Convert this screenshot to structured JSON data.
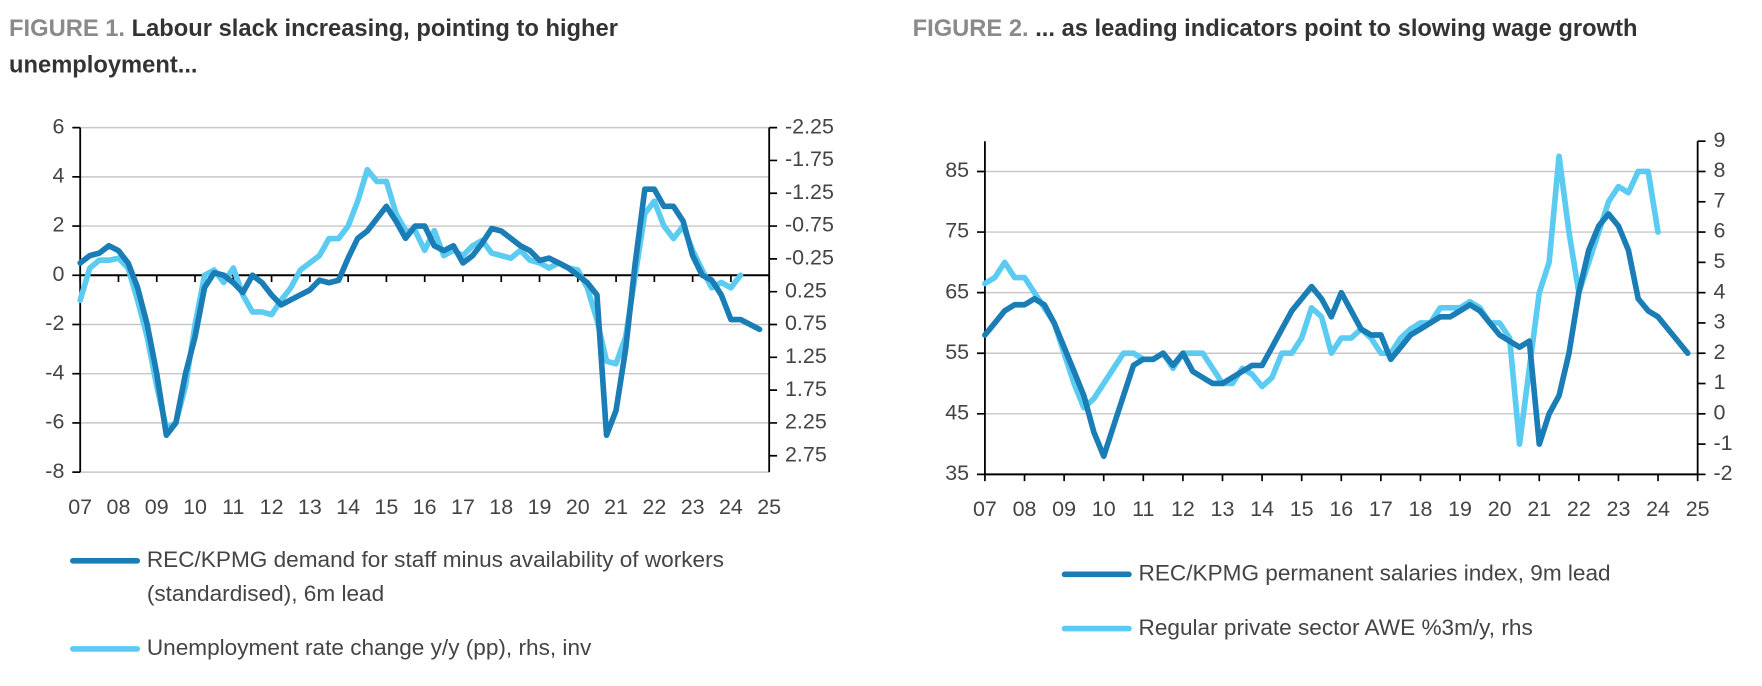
{
  "chart_data": [
    {
      "type": "line",
      "figure_label": "FIGURE 1.",
      "title": "Labour slack increasing, pointing to higher unemployment...",
      "xlim": [
        2007,
        2025
      ],
      "xticks": [
        {
          "value": 2007,
          "label": "07"
        },
        {
          "value": 2008,
          "label": "08"
        },
        {
          "value": 2009,
          "label": "09"
        },
        {
          "value": 2010,
          "label": "10"
        },
        {
          "value": 2011,
          "label": "11"
        },
        {
          "value": 2012,
          "label": "12"
        },
        {
          "value": 2013,
          "label": "13"
        },
        {
          "value": 2014,
          "label": "14"
        },
        {
          "value": 2015,
          "label": "15"
        },
        {
          "value": 2016,
          "label": "16"
        },
        {
          "value": 2017,
          "label": "17"
        },
        {
          "value": 2018,
          "label": "18"
        },
        {
          "value": 2019,
          "label": "19"
        },
        {
          "value": 2020,
          "label": "20"
        },
        {
          "value": 2021,
          "label": "21"
        },
        {
          "value": 2022,
          "label": "22"
        },
        {
          "value": 2023,
          "label": "23"
        },
        {
          "value": 2024,
          "label": "24"
        },
        {
          "value": 2025,
          "label": "25"
        }
      ],
      "ylim": [
        -8,
        6
      ],
      "yticks": [
        -8,
        -6,
        -4,
        -2,
        0,
        2,
        4,
        6
      ],
      "y2lim": [
        -2.25,
        3
      ],
      "y2_inverted": true,
      "y2ticks": [
        -2.25,
        -1.75,
        -1.25,
        -0.75,
        -0.25,
        0.25,
        0.75,
        1.25,
        1.75,
        2.25,
        2.75
      ],
      "grid": true,
      "x": [
        2007,
        2007.25,
        2007.5,
        2007.75,
        2008,
        2008.25,
        2008.5,
        2008.75,
        2009,
        2009.25,
        2009.5,
        2009.75,
        2010,
        2010.25,
        2010.5,
        2010.75,
        2011,
        2011.25,
        2011.5,
        2011.75,
        2012,
        2012.25,
        2012.5,
        2012.75,
        2013,
        2013.25,
        2013.5,
        2013.75,
        2014,
        2014.25,
        2014.5,
        2014.75,
        2015,
        2015.25,
        2015.5,
        2015.75,
        2016,
        2016.25,
        2016.5,
        2016.75,
        2017,
        2017.25,
        2017.5,
        2017.75,
        2018,
        2018.25,
        2018.5,
        2018.75,
        2019,
        2019.25,
        2019.5,
        2019.75,
        2020,
        2020.25,
        2020.5,
        2020.75,
        2021,
        2021.25,
        2021.5,
        2021.75,
        2022,
        2022.25,
        2022.5,
        2022.75,
        2023,
        2023.25,
        2023.5,
        2023.75,
        2024,
        2024.25,
        2024.5,
        2024.75
      ],
      "series": [
        {
          "name": "REC/KPMG demand for staff minus availability of workers (standardised), 6m lead",
          "color": "#1a7db6",
          "values": [
            0.5,
            0.8,
            0.9,
            1.2,
            1.0,
            0.5,
            -0.5,
            -2.0,
            -4.0,
            -6.5,
            -6.0,
            -4.0,
            -2.5,
            -0.5,
            0.1,
            0.0,
            -0.3,
            -0.7,
            0.0,
            -0.3,
            -0.8,
            -1.2,
            -1.0,
            -0.8,
            -0.6,
            -0.2,
            -0.3,
            -0.2,
            0.7,
            1.5,
            1.8,
            2.3,
            2.8,
            2.2,
            1.5,
            2.0,
            2.0,
            1.2,
            1.0,
            1.2,
            0.5,
            0.8,
            1.3,
            1.9,
            1.8,
            1.5,
            1.2,
            1.0,
            0.6,
            0.7,
            0.5,
            0.3,
            0.0,
            -0.3,
            -0.8,
            -6.5,
            -5.5,
            -3.0,
            0.5,
            3.5,
            3.5,
            2.8,
            2.8,
            2.2,
            0.8,
            0.0,
            -0.2,
            -0.8,
            -1.8,
            -1.8,
            -2.0,
            -2.2
          ]
        },
        {
          "name": "Unemployment rate change y/y (pp), rhs, inv",
          "color": "#5ccbf2",
          "axis": "y2",
          "values": [
            0.38,
            -0.11,
            -0.23,
            -0.23,
            -0.26,
            -0.11,
            0.38,
            0.94,
            1.69,
            2.33,
            2.25,
            1.69,
            0.75,
            0,
            -0.08,
            0.11,
            -0.11,
            0.3,
            0.56,
            0.56,
            0.6,
            0.38,
            0.19,
            -0.08,
            -0.19,
            -0.3,
            -0.56,
            -0.56,
            -0.75,
            -1.13,
            -1.61,
            -1.43,
            -1.43,
            -0.94,
            -0.68,
            -0.68,
            -0.38,
            -0.68,
            -0.3,
            -0.38,
            -0.3,
            -0.45,
            -0.53,
            -0.34,
            -0.3,
            -0.26,
            -0.38,
            -0.23,
            -0.19,
            -0.11,
            -0.19,
            -0.11,
            -0.08,
            0.19,
            0.68,
            1.31,
            1.35,
            0.94,
            0,
            -0.94,
            -1.13,
            -0.75,
            -0.56,
            -0.75,
            -0.38,
            -0.08,
            0.19,
            0.11,
            0.19,
            0,
            null,
            null
          ]
        }
      ]
    },
    {
      "type": "line",
      "figure_label": "FIGURE 2.",
      "title": "... as leading indicators point to slowing wage growth",
      "xlim": [
        2007,
        2025
      ],
      "xticks": [
        {
          "value": 2007,
          "label": "07"
        },
        {
          "value": 2008,
          "label": "08"
        },
        {
          "value": 2009,
          "label": "09"
        },
        {
          "value": 2010,
          "label": "10"
        },
        {
          "value": 2011,
          "label": "11"
        },
        {
          "value": 2012,
          "label": "12"
        },
        {
          "value": 2013,
          "label": "13"
        },
        {
          "value": 2014,
          "label": "14"
        },
        {
          "value": 2015,
          "label": "15"
        },
        {
          "value": 2016,
          "label": "16"
        },
        {
          "value": 2017,
          "label": "17"
        },
        {
          "value": 2018,
          "label": "18"
        },
        {
          "value": 2019,
          "label": "19"
        },
        {
          "value": 2020,
          "label": "20"
        },
        {
          "value": 2021,
          "label": "21"
        },
        {
          "value": 2022,
          "label": "22"
        },
        {
          "value": 2023,
          "label": "23"
        },
        {
          "value": 2024,
          "label": "24"
        },
        {
          "value": 2025,
          "label": "25"
        }
      ],
      "ylim": [
        35,
        90
      ],
      "yticks": [
        35,
        45,
        55,
        65,
        75,
        85
      ],
      "y2lim": [
        -2,
        9
      ],
      "y2ticks": [
        -2,
        -1,
        0,
        1,
        2,
        3,
        4,
        5,
        6,
        7,
        8,
        9
      ],
      "grid": true,
      "x": [
        2007,
        2007.25,
        2007.5,
        2007.75,
        2008,
        2008.25,
        2008.5,
        2008.75,
        2009,
        2009.25,
        2009.5,
        2009.75,
        2010,
        2010.25,
        2010.5,
        2010.75,
        2011,
        2011.25,
        2011.5,
        2011.75,
        2012,
        2012.25,
        2012.5,
        2012.75,
        2013,
        2013.25,
        2013.5,
        2013.75,
        2014,
        2014.25,
        2014.5,
        2014.75,
        2015,
        2015.25,
        2015.5,
        2015.75,
        2016,
        2016.25,
        2016.5,
        2016.75,
        2017,
        2017.25,
        2017.5,
        2017.75,
        2018,
        2018.25,
        2018.5,
        2018.75,
        2019,
        2019.25,
        2019.5,
        2019.75,
        2020,
        2020.25,
        2020.5,
        2020.75,
        2021,
        2021.25,
        2021.5,
        2021.75,
        2022,
        2022.25,
        2022.5,
        2022.75,
        2023,
        2023.25,
        2023.5,
        2023.75,
        2024,
        2024.25,
        2024.5,
        2024.75
      ],
      "series": [
        {
          "name": "REC/KPMG permanent salaries index, 9m lead",
          "color": "#1a7db6",
          "values": [
            58,
            60,
            62,
            63,
            63,
            64,
            63,
            60,
            56,
            52,
            48,
            42,
            38,
            43,
            48,
            53,
            54,
            54,
            55,
            53,
            55,
            52,
            51,
            50,
            50,
            51,
            52,
            53,
            53,
            56,
            59,
            62,
            64,
            66,
            64,
            61,
            65,
            62,
            59,
            58,
            58,
            54,
            56,
            58,
            59,
            60,
            61,
            61,
            62,
            63,
            62,
            60,
            58,
            57,
            56,
            57,
            40,
            45,
            48,
            55,
            65,
            72,
            76,
            78,
            76,
            72,
            64,
            62,
            61,
            59,
            57,
            55
          ]
        },
        {
          "name": "Regular private sector AWE %3m/y, rhs",
          "color": "#5ccbf2",
          "axis": "y2",
          "values": [
            4.3,
            4.5,
            5.0,
            4.5,
            4.5,
            4.0,
            3.5,
            3.0,
            2.0,
            1.0,
            0.2,
            0.5,
            1.0,
            1.5,
            2.0,
            2.0,
            1.8,
            1.8,
            2.0,
            1.5,
            2.0,
            2.0,
            2.0,
            1.5,
            1.0,
            1.0,
            1.5,
            1.3,
            0.9,
            1.2,
            2.0,
            2.0,
            2.5,
            3.5,
            3.2,
            2.0,
            2.5,
            2.5,
            2.8,
            2.5,
            2.0,
            2.0,
            2.5,
            2.8,
            3.0,
            3.0,
            3.5,
            3.5,
            3.5,
            3.7,
            3.5,
            3.0,
            3.0,
            2.5,
            -1.0,
            1.5,
            4.0,
            5.0,
            8.5,
            6.0,
            4.0,
            5.0,
            6.0,
            7.0,
            7.5,
            7.3,
            8.0,
            8.0,
            6.0,
            null,
            null,
            null
          ]
        }
      ]
    }
  ]
}
